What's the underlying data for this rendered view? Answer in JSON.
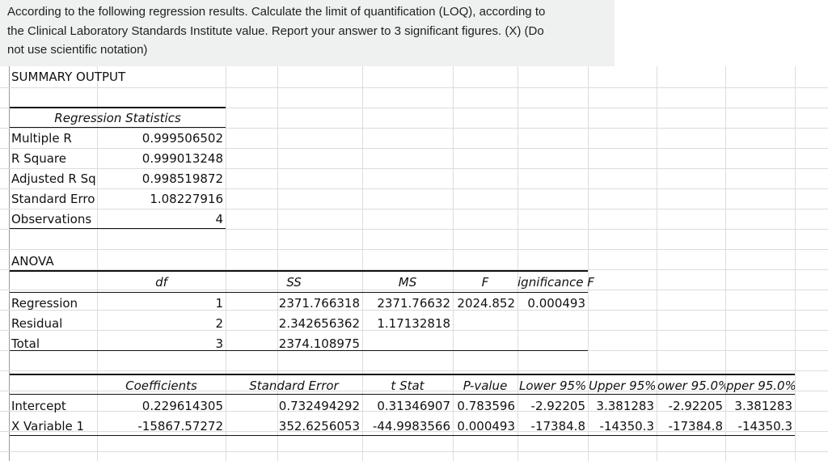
{
  "question": {
    "line1": "According to the following regression results.  Calculate the limit of quantification (LOQ), according to",
    "line2": "the Clinical Laboratory Standards Institute value.  Report your answer to 3 significant figures. (X) (Do",
    "line3": "not use scientific notation)"
  },
  "sheet": {
    "summary_title": "SUMMARY OUTPUT",
    "regression_statistics": {
      "header": "Regression Statistics",
      "rows": [
        {
          "label": "Multiple R",
          "value": "0.999506502"
        },
        {
          "label": "R Square",
          "value": "0.999013248"
        },
        {
          "label": "Adjusted R Squ",
          "value": "0.998519872"
        },
        {
          "label": "Standard Erro",
          "value": "1.08227916"
        },
        {
          "label": "Observations",
          "value": "4"
        }
      ]
    },
    "anova": {
      "title": "ANOVA",
      "headers": [
        "df",
        "SS",
        "MS",
        "F",
        "ignificance F"
      ],
      "rows": [
        {
          "label": "Regression",
          "df": "1",
          "ss": "2371.766318",
          "ms": "2371.76632",
          "f": "2024.852",
          "sig": "0.000493"
        },
        {
          "label": "Residual",
          "df": "2",
          "ss": "2.342656362",
          "ms": "1.17132818",
          "f": "",
          "sig": ""
        },
        {
          "label": "Total",
          "df": "3",
          "ss": "2374.108975",
          "ms": "",
          "f": "",
          "sig": ""
        }
      ]
    },
    "coefficients": {
      "headers": [
        "Coefficients",
        "Standard Error",
        "t Stat",
        "P-value",
        "Lower 95%",
        "Upper 95%",
        "ower 95.0%",
        "pper 95.0%"
      ],
      "rows": [
        {
          "label": "Intercept",
          "coef": "0.229614305",
          "se": "0.732494292",
          "t": "0.31346907",
          "p": "0.783596",
          "l95": "-2.92205",
          "u95": "3.381283",
          "l950": "-2.92205",
          "u950": "3.381283"
        },
        {
          "label": "X Variable 1",
          "coef": "-15867.57272",
          "se": "352.6256053",
          "t": "-44.9983566",
          "p": "0.000493",
          "l95": "-17384.8",
          "u95": "-14350.3",
          "l950": "-17384.8",
          "u950": "-14350.3"
        }
      ]
    }
  }
}
